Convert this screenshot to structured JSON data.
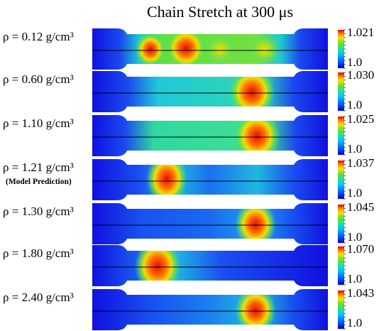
{
  "title": "Chain Stretch at 300 μs",
  "rows": [
    {
      "label": "ρ = 0.12 g/cm³",
      "note": "",
      "colorbar_max": "1.021",
      "colorbar_min": "1.0"
    },
    {
      "label": "ρ = 0.60 g/cm³",
      "note": "",
      "colorbar_max": "1.030",
      "colorbar_min": "1.0"
    },
    {
      "label": "ρ = 1.10 g/cm³",
      "note": "",
      "colorbar_max": "1.025",
      "colorbar_min": "1.0"
    },
    {
      "label": "ρ = 1.21 g/cm³",
      "note": "(Model Prediction)",
      "colorbar_max": "1.037",
      "colorbar_min": "1.0"
    },
    {
      "label": "ρ = 1.30 g/cm³",
      "note": "",
      "colorbar_max": "1.045",
      "colorbar_min": "1.0"
    },
    {
      "label": "ρ = 1.80 g/cm³",
      "note": "",
      "colorbar_max": "1.070",
      "colorbar_min": "1.0"
    },
    {
      "label": "ρ = 2.40 g/cm³",
      "note": "",
      "colorbar_max": "1.043",
      "colorbar_min": "1.0"
    }
  ],
  "colors": {
    "low": "#1010e0",
    "mid": "#20d8b8",
    "high": "#e02010"
  }
}
